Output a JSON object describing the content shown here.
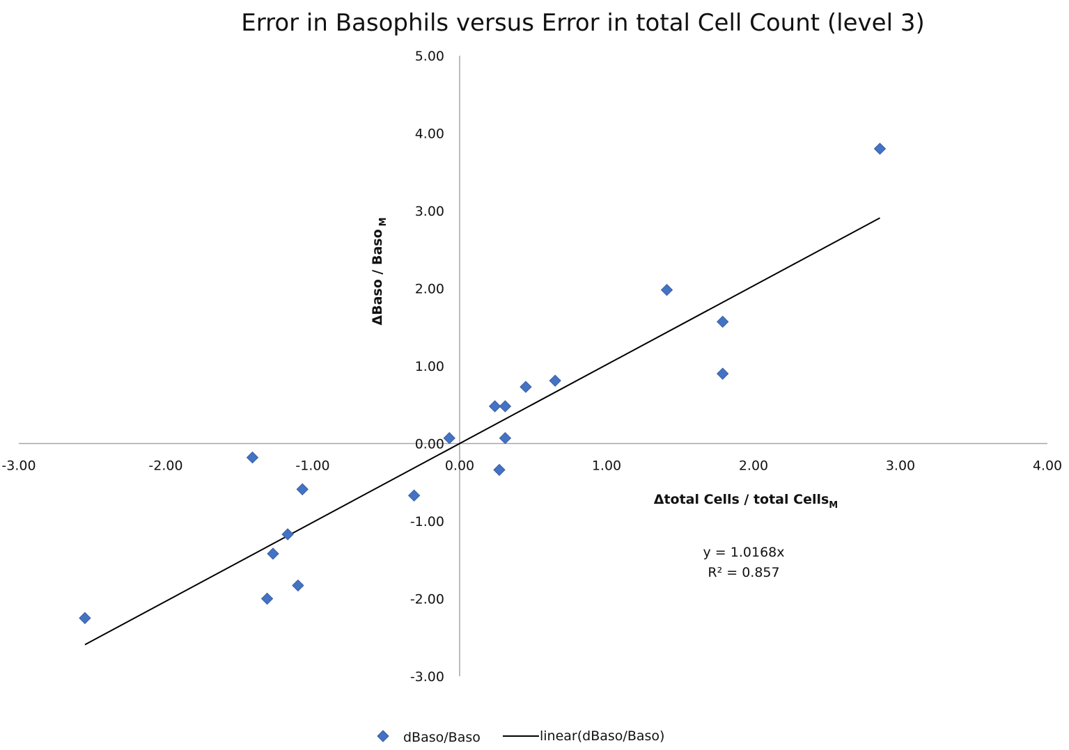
{
  "chart_data": {
    "type": "scatter",
    "title": "Error in Basophils versus Error in total Cell Count (level 3)",
    "xlabel": {
      "main": "Δtotal Cells / total Cells",
      "sub": "M"
    },
    "ylabel": {
      "main": "ΔBaso / Baso",
      "sub": "M"
    },
    "xlim": [
      -3,
      4
    ],
    "ylim": [
      -3,
      5
    ],
    "x_ticks": [
      "-3.00",
      "-2.00",
      "-1.00",
      "0.00",
      "1.00",
      "2.00",
      "3.00",
      "4.00"
    ],
    "y_ticks": [
      "-3.00",
      "-2.00",
      "-1.00",
      "0.00",
      "1.00",
      "2.00",
      "3.00",
      "4.00",
      "5.00"
    ],
    "grid": false,
    "legend_position": "bottom",
    "series": [
      {
        "name": "dBaso/Baso",
        "marker": "diamond",
        "color": "#4472c4",
        "points": [
          {
            "x": -2.55,
            "y": -2.25
          },
          {
            "x": -1.41,
            "y": -0.18
          },
          {
            "x": -1.07,
            "y": -0.59
          },
          {
            "x": -1.17,
            "y": -1.17
          },
          {
            "x": -1.27,
            "y": -1.42
          },
          {
            "x": -1.31,
            "y": -2.0
          },
          {
            "x": -1.1,
            "y": -1.83
          },
          {
            "x": -0.31,
            "y": -0.67
          },
          {
            "x": -0.07,
            "y": 0.07
          },
          {
            "x": 0.24,
            "y": 0.48
          },
          {
            "x": 0.31,
            "y": 0.48
          },
          {
            "x": 0.31,
            "y": 0.07
          },
          {
            "x": 0.27,
            "y": -0.34
          },
          {
            "x": 0.45,
            "y": 0.73
          },
          {
            "x": 0.65,
            "y": 0.81
          },
          {
            "x": 1.41,
            "y": 1.98
          },
          {
            "x": 1.79,
            "y": 1.57
          },
          {
            "x": 1.79,
            "y": 0.9
          },
          {
            "x": 2.86,
            "y": 3.8
          }
        ]
      }
    ],
    "trendline": {
      "name": "linear(dBaso/Baso)",
      "color": "#000000",
      "slope": 1.0168,
      "x_range": [
        -2.55,
        2.86
      ],
      "equation": "y = 1.0168x",
      "r_squared": "R² = 0.857"
    }
  }
}
